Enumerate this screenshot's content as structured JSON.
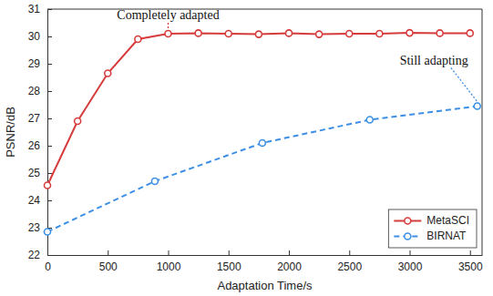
{
  "chart_data": {
    "type": "line",
    "x_label": "Adaptation Time/s",
    "y_label": "PSNR/dB",
    "xlim": [
      0,
      3600
    ],
    "ylim": [
      22,
      31
    ],
    "xticks": [
      0,
      500,
      1000,
      1500,
      2000,
      2500,
      3000,
      3500
    ],
    "yticks": [
      22,
      23,
      24,
      25,
      26,
      27,
      28,
      29,
      30,
      31
    ],
    "grid": false,
    "legend": "lower right",
    "series": [
      {
        "name": "MetaSCI",
        "color": "#d63c3c",
        "marker": "circle",
        "line_style": "solid",
        "x": [
          0,
          250,
          500,
          750,
          1000,
          1250,
          1500,
          1750,
          2000,
          2250,
          2500,
          2750,
          3000,
          3250,
          3500
        ],
        "values": [
          24.55,
          26.9,
          28.65,
          29.9,
          30.1,
          30.12,
          30.1,
          30.08,
          30.12,
          30.08,
          30.1,
          30.1,
          30.13,
          30.12,
          30.12
        ]
      },
      {
        "name": "BIRNAT",
        "color": "#3d8fe6",
        "marker": "circle",
        "line_style": "dashed",
        "x": [
          0,
          890,
          1780,
          2670,
          3560
        ],
        "values": [
          22.85,
          24.7,
          26.1,
          26.95,
          27.45
        ]
      }
    ],
    "annotations": [
      {
        "text": "Completely adapted",
        "x": 1000,
        "y": 30.1
      },
      {
        "text": "Still adapting",
        "x": 3560,
        "y": 27.45
      }
    ]
  }
}
